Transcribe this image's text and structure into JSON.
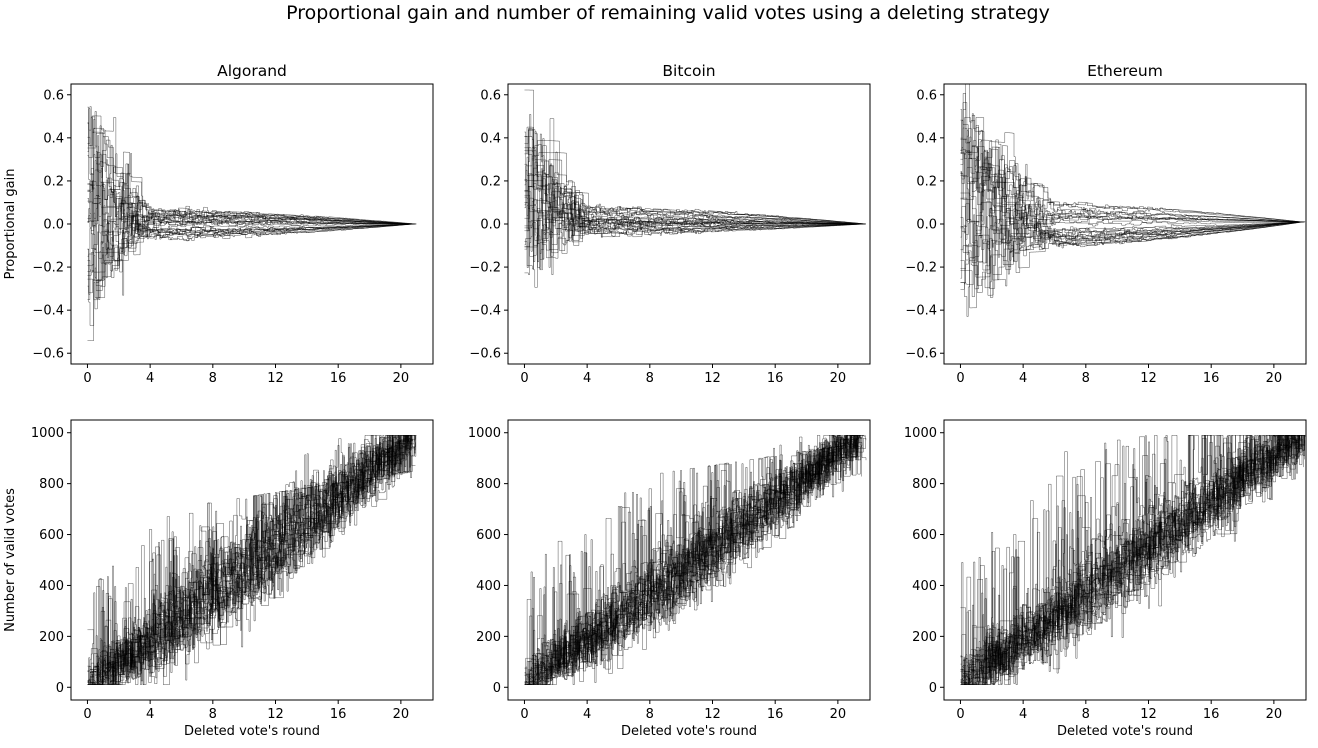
{
  "figure": {
    "title": "Proportional gain and number of remaining valid votes using a deleting strategy"
  },
  "chart_data": [
    {
      "type": "line",
      "row": "gain",
      "title": "Algorand",
      "xlabel": "",
      "ylabel": "Proportional gain",
      "xlim": [
        -1.05,
        22.05
      ],
      "ylim": [
        -0.65,
        0.65
      ],
      "xticks": [
        0,
        4,
        8,
        12,
        16,
        20
      ],
      "yticks": [
        -0.6,
        -0.4,
        -0.2,
        0.0,
        0.2,
        0.4,
        0.6
      ],
      "ytick_labels": [
        "−0.6",
        "−0.4",
        "−0.2",
        "0.0",
        "0.2",
        "0.4",
        "0.6"
      ],
      "line_color": "#000000",
      "series_count": 30,
      "series_profile": {
        "x_end": 21.0,
        "start_spread": [
          -0.3,
          0.55
        ],
        "settled_after_x": 4,
        "settled_band": [
          -0.08,
          0.08
        ],
        "end_value": 0.0
      },
      "grid": false
    },
    {
      "type": "line",
      "row": "gain",
      "title": "Bitcoin",
      "xlabel": "",
      "ylabel": "",
      "xlim": [
        -1.05,
        22.05
      ],
      "ylim": [
        -0.65,
        0.65
      ],
      "xticks": [
        0,
        4,
        8,
        12,
        16,
        20
      ],
      "yticks": [
        -0.6,
        -0.4,
        -0.2,
        0.0,
        0.2,
        0.4,
        0.6
      ],
      "ytick_labels": [
        "−0.6",
        "−0.4",
        "−0.2",
        "0.0",
        "0.2",
        "0.4",
        "0.6"
      ],
      "line_color": "#000000",
      "series_count": 30,
      "series_profile": {
        "x_end": 21.8,
        "start_spread": [
          -0.17,
          0.45
        ],
        "settled_after_x": 4,
        "settled_band": [
          -0.05,
          0.08
        ],
        "end_value": 0.0
      },
      "grid": false
    },
    {
      "type": "line",
      "row": "gain",
      "title": "Ethereum",
      "xlabel": "",
      "ylabel": "",
      "xlim": [
        -1.05,
        22.05
      ],
      "ylim": [
        -0.65,
        0.65
      ],
      "xticks": [
        0,
        4,
        8,
        12,
        16,
        20
      ],
      "yticks": [
        -0.6,
        -0.4,
        -0.2,
        0.0,
        0.2,
        0.4,
        0.6
      ],
      "ytick_labels": [
        "−0.6",
        "−0.4",
        "−0.2",
        "0.0",
        "0.2",
        "0.4",
        "0.6"
      ],
      "line_color": "#000000",
      "series_count": 30,
      "series_profile": {
        "x_end": 22.0,
        "start_spread": [
          -0.3,
          0.53
        ],
        "settled_after_x": 6,
        "settled_band": [
          -0.12,
          0.1
        ],
        "end_value": 0.01
      },
      "grid": false
    },
    {
      "type": "line",
      "row": "votes",
      "title": "",
      "xlabel": "Deleted vote's round",
      "ylabel": "Number of valid votes",
      "xlim": [
        -1.05,
        22.05
      ],
      "ylim": [
        -50,
        1050
      ],
      "xticks": [
        0,
        4,
        8,
        12,
        16,
        20
      ],
      "yticks": [
        0,
        200,
        400,
        600,
        800,
        1000
      ],
      "ytick_labels": [
        "0",
        "200",
        "400",
        "600",
        "800",
        "1000"
      ],
      "line_color": "#000000",
      "series_count": 30,
      "series_profile": {
        "x_end": 21.0,
        "start_value": 20,
        "end_value": 990,
        "spread": 150,
        "spike_max": 650
      },
      "grid": false
    },
    {
      "type": "line",
      "row": "votes",
      "title": "",
      "xlabel": "Deleted vote's round",
      "ylabel": "",
      "xlim": [
        -1.05,
        22.05
      ],
      "ylim": [
        -50,
        1050
      ],
      "xticks": [
        0,
        4,
        8,
        12,
        16,
        20
      ],
      "yticks": [
        0,
        200,
        400,
        600,
        800,
        1000
      ],
      "ytick_labels": [
        "0",
        "200",
        "400",
        "600",
        "800",
        "1000"
      ],
      "line_color": "#000000",
      "series_count": 30,
      "series_profile": {
        "x_end": 21.8,
        "start_value": 20,
        "end_value": 990,
        "spread": 140,
        "spike_max": 760
      },
      "grid": false
    },
    {
      "type": "line",
      "row": "votes",
      "title": "",
      "xlabel": "Deleted vote's round",
      "ylabel": "",
      "xlim": [
        -1.05,
        22.05
      ],
      "ylim": [
        -50,
        1050
      ],
      "xticks": [
        0,
        4,
        8,
        12,
        16,
        20
      ],
      "yticks": [
        0,
        200,
        400,
        600,
        800,
        1000
      ],
      "ytick_labels": [
        "0",
        "200",
        "400",
        "600",
        "800",
        "1000"
      ],
      "line_color": "#000000",
      "series_count": 30,
      "series_profile": {
        "x_end": 22.0,
        "start_value": 20,
        "end_value": 990,
        "spread": 150,
        "spike_max": 880
      },
      "grid": false
    }
  ]
}
